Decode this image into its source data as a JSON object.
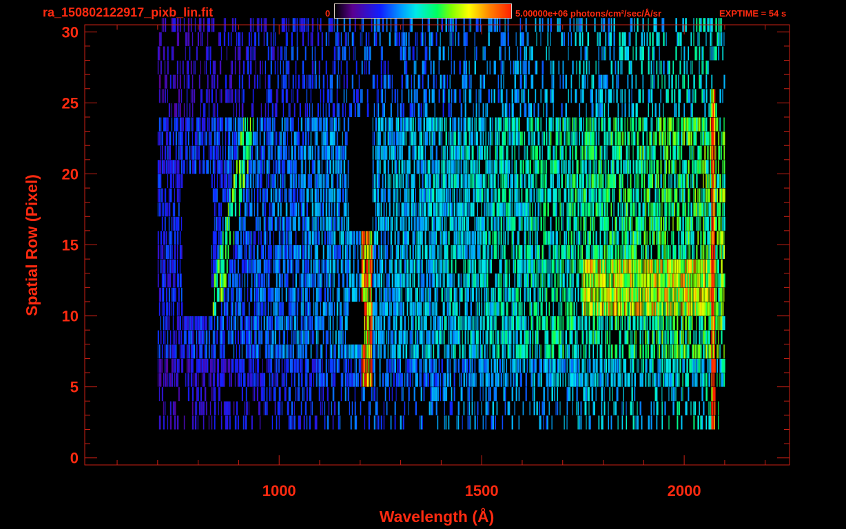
{
  "header": {
    "file_title": "ra_150802122917_pixb_lin.fit",
    "colorbar_min": "0",
    "colorbar_max_label": "5.00000e+06 photons/cm²/sec/Å/sr",
    "exptime": "EXPTIME = 54 s"
  },
  "colors": {
    "text": "#ff2a10",
    "axis": "#cc1f14",
    "background": "#000000",
    "colormap": [
      "#000000",
      "#5a0090",
      "#1020ff",
      "#00a0ff",
      "#00e8e8",
      "#00ff60",
      "#80ff00",
      "#ffff00",
      "#ff8000",
      "#ff2000"
    ]
  },
  "chart_data": {
    "type": "heatmap",
    "title": "ra_150802122917_pixb_lin.fit",
    "xlabel": "Wavelength (Å)",
    "ylabel": "Spatial Row (Pixel)",
    "xlim": [
      520,
      2260
    ],
    "ylim": [
      -0.5,
      30.5
    ],
    "xticks": [
      1000,
      1500,
      2000
    ],
    "yticks": [
      0,
      5,
      10,
      15,
      20,
      25,
      30
    ],
    "colorscale": {
      "min": 0,
      "max": 5000000,
      "units": "photons/cm²/sec/Å/sr"
    },
    "data_x_range": [
      700,
      2100
    ],
    "data_row_range": [
      2,
      30
    ],
    "grid": false,
    "features": [
      {
        "kind": "emission line",
        "wavelength": 1216,
        "rows": [
          5,
          16
        ],
        "level": 0.9
      },
      {
        "kind": "diagonal streak",
        "from": [
          840,
          10
        ],
        "to": [
          925,
          23
        ],
        "level": 0.6
      },
      {
        "kind": "bright band",
        "wavelength_range": [
          1750,
          2080
        ],
        "rows": [
          10,
          13
        ],
        "level": 0.75
      },
      {
        "kind": "edge line",
        "wavelength": 2070,
        "rows": [
          2,
          25
        ],
        "level": 0.95
      },
      {
        "kind": "no data gap",
        "wavelength_range": [
          1170,
          1230
        ],
        "rows": [
          16,
          24
        ]
      },
      {
        "kind": "no data gap",
        "wavelength_range": [
          1170,
          1210
        ],
        "rows": [
          8,
          11
        ]
      },
      {
        "kind": "no data gap",
        "wavelength_range": [
          760,
          830
        ],
        "rows": [
          10,
          20
        ]
      }
    ]
  }
}
